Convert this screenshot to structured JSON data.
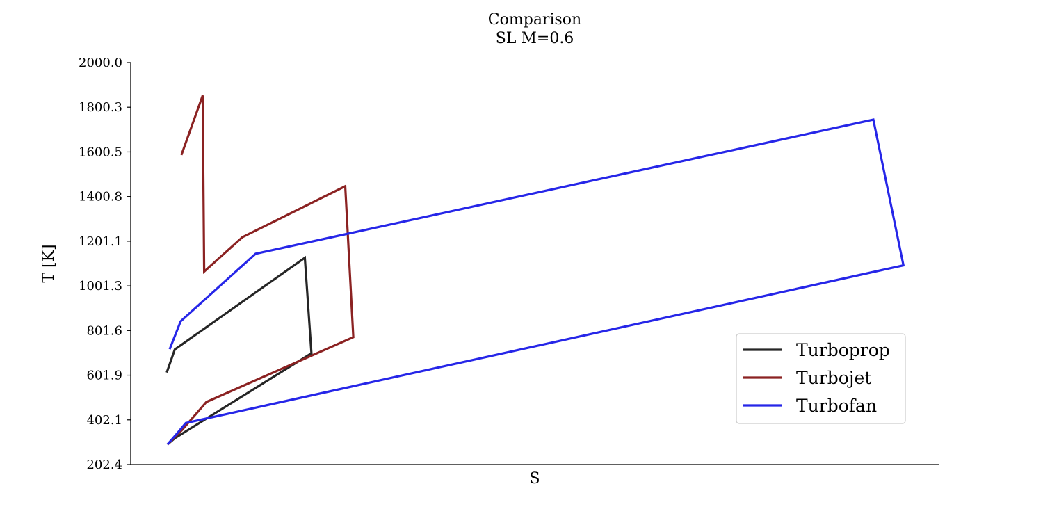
{
  "chart_data": {
    "type": "line",
    "title": "Comparison",
    "subtitle": "SL M=0.6",
    "xlabel": "S",
    "ylabel": "T [K]",
    "ylim": [
      202.4,
      2000.0
    ],
    "xlim": [
      -0.05,
      1.05
    ],
    "y_ticks": [
      "202.4",
      "402.1",
      "601.9",
      "801.6",
      "1001.3",
      "1201.1",
      "1400.8",
      "1600.5",
      "1800.3",
      "2000.0"
    ],
    "x_ticks": [],
    "grid": false,
    "legend_position": "lower-right",
    "series": [
      {
        "name": "Turboprop",
        "color": "#262626",
        "points": [
          [
            0.0,
            292
          ],
          [
            0.01,
            320
          ],
          [
            0.196,
            700
          ],
          [
            0.187,
            1127
          ],
          [
            0.01,
            717
          ],
          [
            -0.001,
            614
          ]
        ]
      },
      {
        "name": "Turbojet",
        "color": "#8b2222",
        "points": [
          [
            0.0,
            292
          ],
          [
            0.02,
            357
          ],
          [
            0.053,
            482
          ],
          [
            0.253,
            772
          ],
          [
            0.242,
            1447
          ],
          [
            0.102,
            1219
          ],
          [
            0.05,
            1065
          ],
          [
            0.048,
            1853
          ],
          [
            0.019,
            1587
          ]
        ]
      },
      {
        "name": "Turbofan",
        "color": "#2626e8",
        "points": [
          [
            0.0,
            292
          ],
          [
            0.012,
            337
          ],
          [
            0.025,
            388
          ],
          [
            1.002,
            1093
          ],
          [
            0.961,
            1745
          ],
          [
            0.12,
            1145
          ],
          [
            0.018,
            843
          ],
          [
            0.003,
            718
          ]
        ]
      }
    ]
  }
}
